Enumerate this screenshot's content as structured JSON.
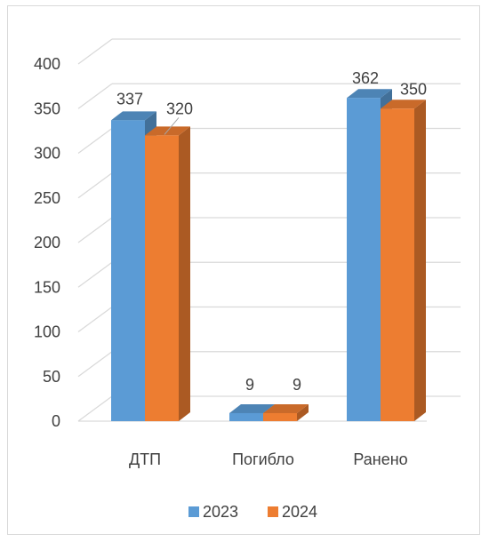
{
  "chart_data": {
    "type": "bar",
    "style": "3d-clustered-column",
    "categories": [
      "ДТП",
      "Погибло",
      "Ранено"
    ],
    "series": [
      {
        "name": "2023",
        "color": "#5b9bd5",
        "values": [
          337,
          9,
          362
        ]
      },
      {
        "name": "2024",
        "color": "#ed7d31",
        "values": [
          320,
          9,
          350
        ]
      }
    ],
    "ylim": [
      0,
      400
    ],
    "yticks": [
      0,
      50,
      100,
      150,
      200,
      250,
      300,
      350,
      400
    ],
    "grid": true,
    "legend_position": "bottom",
    "title": "",
    "xlabel": "",
    "ylabel": ""
  }
}
